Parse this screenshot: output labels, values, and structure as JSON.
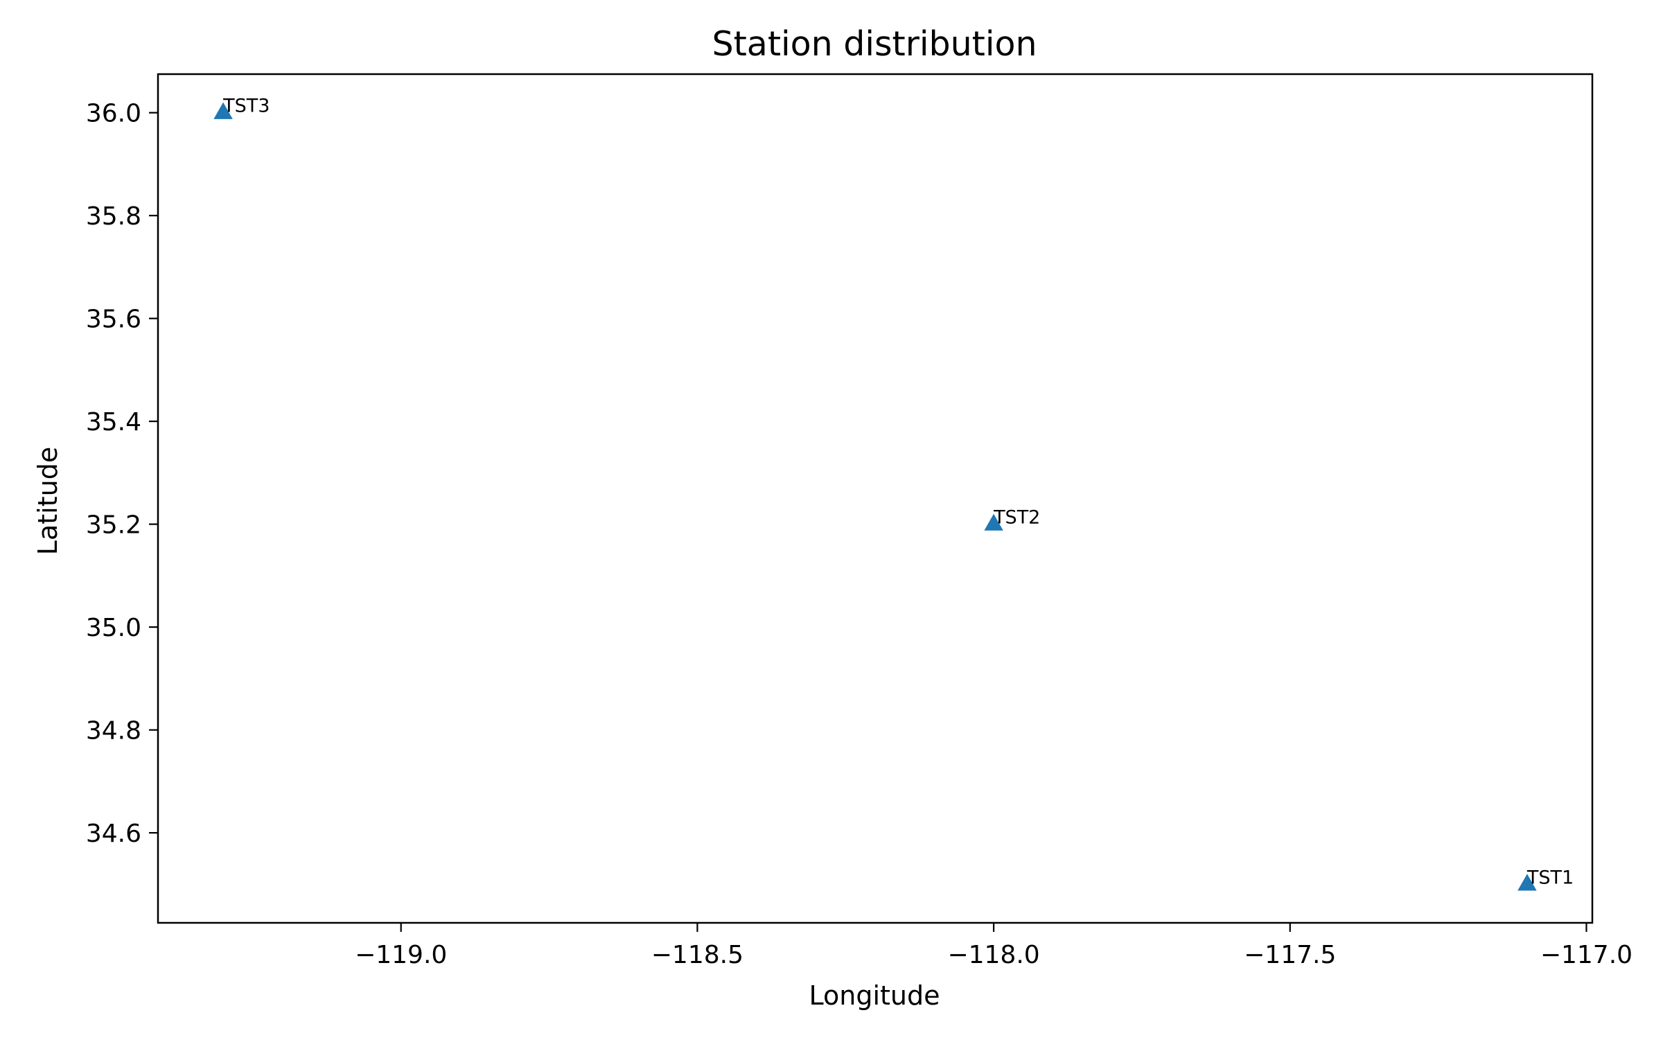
{
  "chart_data": {
    "type": "scatter",
    "title": "Station distribution",
    "xlabel": "Longitude",
    "ylabel": "Latitude",
    "xlim": [
      -119.41,
      -116.99
    ],
    "ylim": [
      34.425,
      36.075
    ],
    "x_ticks": [
      -119.0,
      -118.5,
      -118.0,
      -117.5,
      -117.0
    ],
    "x_tick_labels": [
      "−119.0",
      "−118.5",
      "−118.0",
      "−117.5",
      "−117.0"
    ],
    "y_ticks": [
      34.6,
      34.8,
      35.0,
      35.2,
      35.4,
      35.6,
      35.8,
      36.0
    ],
    "y_tick_labels": [
      "34.6",
      "34.8",
      "35.0",
      "35.2",
      "35.4",
      "35.6",
      "35.8",
      "36.0"
    ],
    "grid": false,
    "marker": "triangle-up",
    "color": "#1f77b4",
    "points": [
      {
        "label": "TST1",
        "x": -117.1,
        "y": 34.5
      },
      {
        "label": "TST2",
        "x": -118.0,
        "y": 35.2
      },
      {
        "label": "TST3",
        "x": -119.3,
        "y": 36.0
      }
    ]
  }
}
